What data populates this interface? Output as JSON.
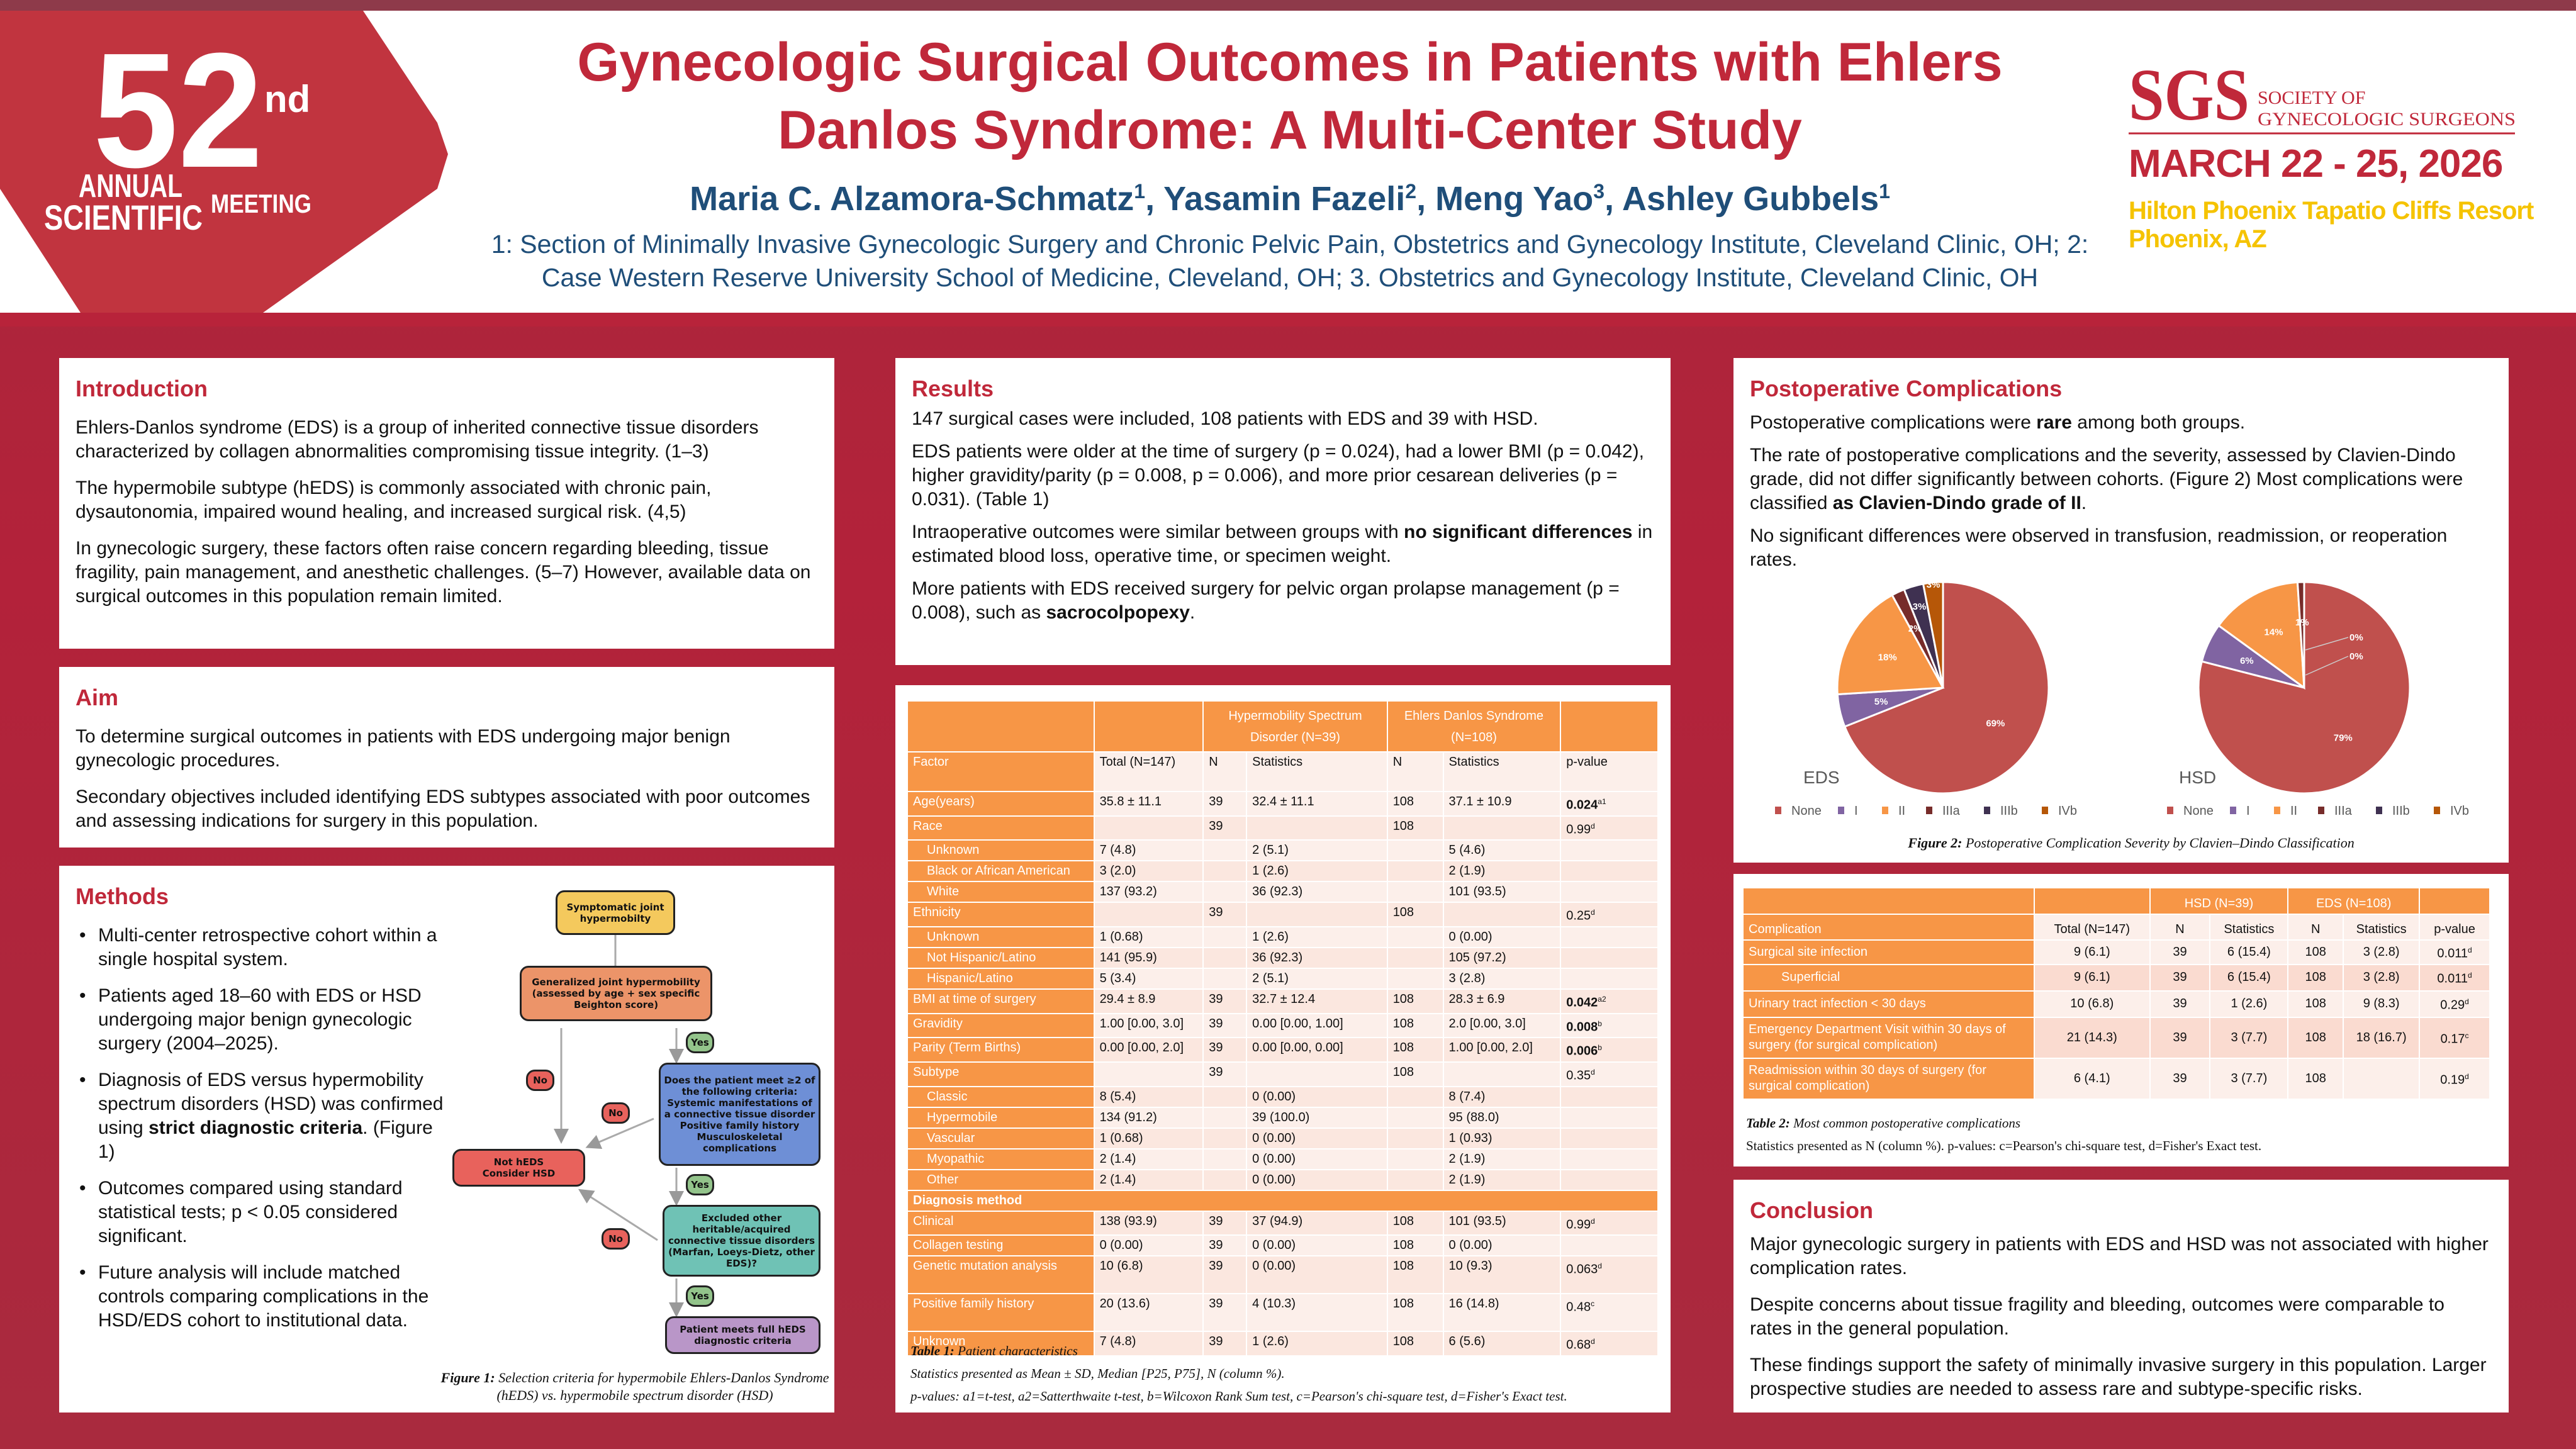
{
  "header": {
    "title_line1": "Gynecologic Surgical Outcomes in Patients with Ehlers",
    "title_line2": "Danlos Syndrome: A Multi-Center Study",
    "authors": [
      {
        "name": "Maria C. Alzamora-Schmatz",
        "sup": "1",
        "sep": ", "
      },
      {
        "name": "Yasamin Fazeli",
        "sup": "2",
        "sep": ", "
      },
      {
        "name": "Meng Yao",
        "sup": "3",
        "sep": ", "
      },
      {
        "name": "Ashley Gubbels",
        "sup": "1",
        "sep": ""
      }
    ],
    "affiliation_line1": "1: Section of Minimally Invasive Gynecologic Surgery and Chronic Pelvic Pain, Obstetrics and Gynecology Institute, Cleveland Clinic, OH; 2:",
    "affiliation_line2": "Case Western Reserve University School of Medicine, Cleveland, OH; 3. Obstetrics and Gynecology Institute, Cleveland Clinic, OH"
  },
  "meeting_logo": {
    "number": "52",
    "suffix": "nd",
    "line1": "ANNUAL",
    "line2": "SCIENTIFIC",
    "line3": "MEETING"
  },
  "society_logo": {
    "abbr": "SGS",
    "name1": "SOCIETY OF",
    "name2": "GYNECOLOGIC SURGEONS",
    "dates": "MARCH 22 - 25, 2026",
    "venue": "Hilton Phoenix Tapatio Cliffs Resort",
    "city": "Phoenix, AZ",
    "colors": {
      "red": "#c0283a",
      "yellow": "#f5c300"
    }
  },
  "introduction": {
    "heading": "Introduction",
    "paragraphs": [
      "Ehlers-Danlos syndrome (EDS) is a group of inherited connective tissue disorders characterized by collagen abnormalities compromising tissue integrity. (1–3)",
      "The hypermobile subtype (hEDS) is commonly associated with chronic pain, dysautonomia, impaired wound healing, and increased surgical risk. (4,5)",
      "In gynecologic surgery, these factors often raise concern regarding bleeding, tissue fragility, pain management, and anesthetic challenges. (5–7) However, available data on surgical outcomes in this population remain limited."
    ]
  },
  "aim": {
    "heading": "Aim",
    "paragraphs": [
      "To determine surgical outcomes in patients with EDS undergoing major benign gynecologic procedures.",
      "Secondary objectives included identifying EDS subtypes associated with poor outcomes and assessing indications for surgery in this population."
    ]
  },
  "methods": {
    "heading": "Methods",
    "bullets": [
      [
        {
          "t": "Multi-center retrospective cohort within a single hospital system."
        }
      ],
      [
        {
          "t": "Patients aged 18–60 with EDS or HSD undergoing major benign gynecologic surgery (2004–2025)."
        }
      ],
      [
        {
          "t": "Diagnosis of EDS versus hypermobility spectrum disorders (HSD) was confirmed using "
        },
        {
          "t": "strict diagnostic criteria",
          "b": true
        },
        {
          "t": ". (Figure 1)"
        }
      ],
      [
        {
          "t": "Outcomes compared using standard statistical tests; p < 0.05 considered significant."
        }
      ],
      [
        {
          "t": "Future analysis will include matched controls comparing complications in the HSD/EDS cohort to institutional data."
        }
      ]
    ],
    "flowchart": {
      "start": "Symptomatic joint hypermobilty",
      "step1": "Generalized joint hypermobility (assessed by age + sex specific Beighton score)",
      "step2_q": "Does the patient meet ≥2 of the following criteria:",
      "step2_items": [
        "Systemic manifestations of a connective tissue disorder",
        "Positive family history",
        "Musculoskeletal complications"
      ],
      "step3": "Excluded other heritable/acquired connective tissue disorders (Marfan, Loeys-Dietz, other EDS)?",
      "result_yes": "Patient meets full hEDS diagnostic criteria",
      "result_no_1": "Not hEDS",
      "result_no_2": "Consider HSD",
      "yes": "Yes",
      "no": "No"
    },
    "figure_caption_label": "Figure 1:",
    "figure_caption": "Selection criteria for hypermobile Ehlers-Danlos Syndrome (hEDS) vs. hypermobile spectrum disorder (HSD)"
  },
  "results": {
    "heading": "Results",
    "paragraphs": [
      [
        {
          "t": "147 surgical cases were included, 108 patients with EDS and 39 with HSD."
        }
      ],
      [
        {
          "t": "EDS patients were older at the time of surgery (p = 0.024), had a lower BMI (p = 0.042), higher gravidity/parity (p = 0.008, p = 0.006), and more prior cesarean deliveries (p = 0.031). (Table 1)"
        }
      ],
      [
        {
          "t": "Intraoperative outcomes were similar between groups with "
        },
        {
          "t": "no significant differences",
          "b": true
        },
        {
          "t": " in estimated blood loss, operative time, or specimen weight."
        }
      ],
      [
        {
          "t": "More patients with EDS received surgery for pelvic organ prolapse management (p = 0.008), such as "
        },
        {
          "t": "sacrocolpopexy",
          "b": true
        },
        {
          "t": "."
        }
      ]
    ]
  },
  "table1": {
    "group_headers": [
      "Hypermobility Spectrum Disorder (N=39)",
      "Ehlers Danlos Syndrome (N=108)"
    ],
    "columns": [
      "Factor",
      "Total (N=147)",
      "N",
      "Statistics",
      "N",
      "Statistics",
      "p-value"
    ],
    "rows": [
      {
        "f": "Age(years)",
        "c": [
          "35.8 ± 11.1",
          "39",
          "32.4 ± 11.1",
          "108",
          "37.1 ± 10.9"
        ],
        "p": "0.024",
        "ps": "a1",
        "pb": true
      },
      {
        "f": "Race",
        "c": [
          "",
          "39",
          "",
          "108",
          ""
        ],
        "p": "0.99",
        "ps": "d"
      },
      {
        "f": "Unknown",
        "i": true,
        "c": [
          "7 (4.8)",
          "",
          "2 (5.1)",
          "",
          "5 (4.6)"
        ]
      },
      {
        "f": "Black or African American",
        "i": true,
        "c": [
          "3 (2.0)",
          "",
          "1 (2.6)",
          "",
          "2 (1.9)"
        ]
      },
      {
        "f": "White",
        "i": true,
        "c": [
          "137 (93.2)",
          "",
          "36 (92.3)",
          "",
          "101 (93.5)"
        ]
      },
      {
        "f": "Ethnicity",
        "c": [
          "",
          "39",
          "",
          "108",
          ""
        ],
        "p": "0.25",
        "ps": "d"
      },
      {
        "f": "Unknown",
        "i": true,
        "c": [
          "1 (0.68)",
          "",
          "1 (2.6)",
          "",
          "0 (0.00)"
        ]
      },
      {
        "f": "Not Hispanic/Latino",
        "i": true,
        "c": [
          "141 (95.9)",
          "",
          "36 (92.3)",
          "",
          "105 (97.2)"
        ]
      },
      {
        "f": "Hispanic/Latino",
        "i": true,
        "c": [
          "5 (3.4)",
          "",
          "2 (5.1)",
          "",
          "3 (2.8)"
        ]
      },
      {
        "f": "BMI at time of surgery",
        "c": [
          "29.4 ± 8.9",
          "39",
          "32.7 ± 12.4",
          "108",
          "28.3 ± 6.9"
        ],
        "p": "0.042",
        "ps": "a2",
        "pb": true
      },
      {
        "f": "Gravidity",
        "c": [
          "1.00 [0.00, 3.0]",
          "39",
          "0.00 [0.00, 1.00]",
          "108",
          "2.0 [0.00, 3.0]"
        ],
        "p": "0.008",
        "ps": "b",
        "pb": true
      },
      {
        "f": "Parity (Term Births)",
        "c": [
          "0.00 [0.00, 2.0]",
          "39",
          "0.00 [0.00, 0.00]",
          "108",
          "1.00 [0.00, 2.0]"
        ],
        "p": "0.006",
        "ps": "b",
        "pb": true
      },
      {
        "f": "Subtype",
        "c": [
          "",
          "39",
          "",
          "108",
          ""
        ],
        "p": "0.35",
        "ps": "d"
      },
      {
        "f": "Classic",
        "i": true,
        "c": [
          "8 (5.4)",
          "",
          "0 (0.00)",
          "",
          "8 (7.4)"
        ]
      },
      {
        "f": "Hypermobile",
        "i": true,
        "c": [
          "134 (91.2)",
          "",
          "39 (100.0)",
          "",
          "95 (88.0)"
        ]
      },
      {
        "f": "Vascular",
        "i": true,
        "c": [
          "1 (0.68)",
          "",
          "0 (0.00)",
          "",
          "1 (0.93)"
        ]
      },
      {
        "f": "Myopathic",
        "i": true,
        "c": [
          "2 (1.4)",
          "",
          "0 (0.00)",
          "",
          "2 (1.9)"
        ]
      },
      {
        "f": "Other",
        "i": true,
        "c": [
          "2 (1.4)",
          "",
          "0 (0.00)",
          "",
          "2 (1.9)"
        ]
      },
      {
        "section": "Diagnosis method"
      },
      {
        "f": "Clinical",
        "c": [
          "138 (93.9)",
          "39",
          "37 (94.9)",
          "108",
          "101 (93.5)"
        ],
        "p": "0.99",
        "ps": "d"
      },
      {
        "f": "Collagen testing",
        "c": [
          "0 (0.00)",
          "39",
          "0 (0.00)",
          "108",
          "0 (0.00)"
        ]
      },
      {
        "f": "Genetic mutation analysis",
        "tall": true,
        "c": [
          "10 (6.8)",
          "39",
          "0 (0.00)",
          "108",
          "10 (9.3)"
        ],
        "p": "0.063",
        "ps": "d"
      },
      {
        "f": "Positive family history",
        "tall": true,
        "c": [
          "20 (13.6)",
          "39",
          "4 (10.3)",
          "108",
          "16 (14.8)"
        ],
        "p": "0.48",
        "ps": "c"
      },
      {
        "f": "Unknown",
        "c": [
          "7 (4.8)",
          "39",
          "1 (2.6)",
          "108",
          "6 (5.6)"
        ],
        "p": "0.68",
        "ps": "d"
      }
    ],
    "caption_label": "Table 1:",
    "caption": "Patient characteristics",
    "note1": "Statistics presented as Mean ± SD, Median [P25, P75], N (column %).",
    "note2": "p-values: a1=t-test, a2=Satterthwaite t-test, b=Wilcoxon Rank Sum test, c=Pearson's chi-square test, d=Fisher's Exact test."
  },
  "postop": {
    "heading": "Postoperative Complications",
    "paragraphs": [
      [
        {
          "t": "Postoperative complications were "
        },
        {
          "t": "rare",
          "b": true
        },
        {
          "t": " among both groups."
        }
      ],
      [
        {
          "t": "The rate of postoperative complications and the severity, assessed by Clavien-Dindo grade, did not differ significantly between cohorts. (Figure 2) Most complications were classified "
        },
        {
          "t": "as Clavien-Dindo grade of II",
          "b": true
        },
        {
          "t": "."
        }
      ],
      [
        {
          "t": "No significant differences were observed in transfusion, readmission, or reoperation rates."
        }
      ]
    ],
    "figure_caption_label": "Figure 2:",
    "figure_caption": "Postoperative Complication Severity by Clavien–Dindo Classification"
  },
  "chart_data": [
    {
      "type": "pie",
      "title": "EDS",
      "categories": [
        "None",
        "I",
        "II",
        "IIIa",
        "IIIb",
        "IVb"
      ],
      "values": [
        69,
        5,
        18,
        2,
        3,
        3
      ],
      "labels": [
        "69%",
        "5%",
        "18%",
        "2%",
        "3%",
        "3%"
      ],
      "colors": [
        "#c0504d",
        "#8064a2",
        "#f79646",
        "#772c2a",
        "#3f3151",
        "#b65708"
      ],
      "legend": "bottom"
    },
    {
      "type": "pie",
      "title": "HSD",
      "categories": [
        "None",
        "I",
        "II",
        "IIIa",
        "IIIb",
        "IVb"
      ],
      "values": [
        79,
        6,
        14,
        1,
        0,
        0
      ],
      "labels": [
        "79%",
        "6%",
        "14%",
        "1%",
        "0%",
        "0%"
      ],
      "colors": [
        "#c0504d",
        "#8064a2",
        "#f79646",
        "#772c2a",
        "#3f3151",
        "#b65708"
      ],
      "legend": "bottom"
    }
  ],
  "table2": {
    "group_headers": [
      "HSD (N=39)",
      "EDS (N=108)"
    ],
    "columns": [
      "Complication",
      "Total (N=147)",
      "N",
      "Statistics",
      "N",
      "Statistics",
      "p-value"
    ],
    "rows": [
      {
        "f": "Surgical site infection",
        "c": [
          "9 (6.1)",
          "39",
          "6 (15.4)",
          "108",
          "3 (2.8)"
        ],
        "p": "0.011",
        "ps": "d"
      },
      {
        "f": "Superficial",
        "i": true,
        "c": [
          "9 (6.1)",
          "39",
          "6 (15.4)",
          "108",
          "3 (2.8)"
        ],
        "p": "0.011",
        "ps": "d"
      },
      {
        "f": "Urinary tract infection < 30 days",
        "c": [
          "10 (6.8)",
          "39",
          "1 (2.6)",
          "108",
          "9 (8.3)"
        ],
        "p": "0.29",
        "ps": "d"
      },
      {
        "f": "Emergency Department Visit within 30 days of surgery (for surgical complication)",
        "c": [
          "21 (14.3)",
          "39",
          "3 (7.7)",
          "108",
          "18 (16.7)"
        ],
        "p": "0.17",
        "ps": "c"
      },
      {
        "f": "Readmission within 30 days of surgery (for surgical complication)",
        "c": [
          "6 (4.1)",
          "39",
          "3 (7.7)",
          "108",
          ""
        ],
        "p": "0.19",
        "ps": "d"
      }
    ],
    "caption_label": "Table 2:",
    "caption": "Most common postoperative complications",
    "note": "Statistics presented as N (column %). p-values: c=Pearson's chi-square test, d=Fisher's Exact test."
  },
  "conclusion": {
    "heading": "Conclusion",
    "paragraphs": [
      "Major gynecologic surgery in patients with EDS and HSD was not associated with higher complication rates.",
      "Despite concerns about tissue fragility and bleeding, outcomes were comparable to rates in the general population.",
      "These findings support the safety of minimally invasive surgery in this population. Larger prospective studies are needed to assess rare and subtype-specific risks."
    ]
  }
}
